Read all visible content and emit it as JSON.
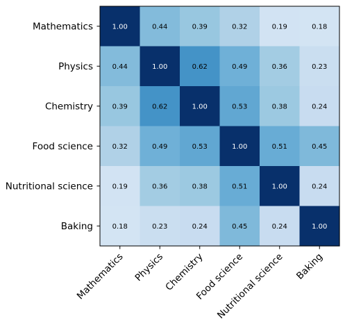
{
  "chart_data": {
    "type": "heatmap",
    "title": "",
    "xlabel": "",
    "ylabel": "",
    "rows": [
      "Mathematics",
      "Physics",
      "Chemistry",
      "Food science",
      "Nutritional science",
      "Baking"
    ],
    "columns": [
      "Mathematics",
      "Physics",
      "Chemistry",
      "Food science",
      "Nutritional science",
      "Baking"
    ],
    "values": [
      [
        1.0,
        0.44,
        0.39,
        0.32,
        0.19,
        0.18
      ],
      [
        0.44,
        1.0,
        0.62,
        0.49,
        0.36,
        0.23
      ],
      [
        0.39,
        0.62,
        1.0,
        0.53,
        0.38,
        0.24
      ],
      [
        0.32,
        0.49,
        0.53,
        1.0,
        0.51,
        0.45
      ],
      [
        0.19,
        0.36,
        0.38,
        0.51,
        1.0,
        0.24
      ],
      [
        0.18,
        0.23,
        0.24,
        0.45,
        0.24,
        1.0
      ]
    ],
    "value_labels": [
      [
        "1.00",
        "0.44",
        "0.39",
        "0.32",
        "0.19",
        "0.18"
      ],
      [
        "0.44",
        "1.00",
        "0.62",
        "0.49",
        "0.36",
        "0.23"
      ],
      [
        "0.39",
        "0.62",
        "1.00",
        "0.53",
        "0.38",
        "0.24"
      ],
      [
        "0.32",
        "0.49",
        "0.53",
        "1.00",
        "0.51",
        "0.45"
      ],
      [
        "0.19",
        "0.36",
        "0.38",
        "0.51",
        "1.00",
        "0.24"
      ],
      [
        "0.18",
        "0.23",
        "0.24",
        "0.45",
        "0.24",
        "1.00"
      ]
    ],
    "colormap": "Blues",
    "color_range": [
      0,
      1
    ],
    "annotation_threshold": 0.7,
    "annotation_colors": {
      "dark_cell_text": "#ffffff",
      "light_cell_text": "#000000"
    },
    "grid": false,
    "legend": "none"
  }
}
